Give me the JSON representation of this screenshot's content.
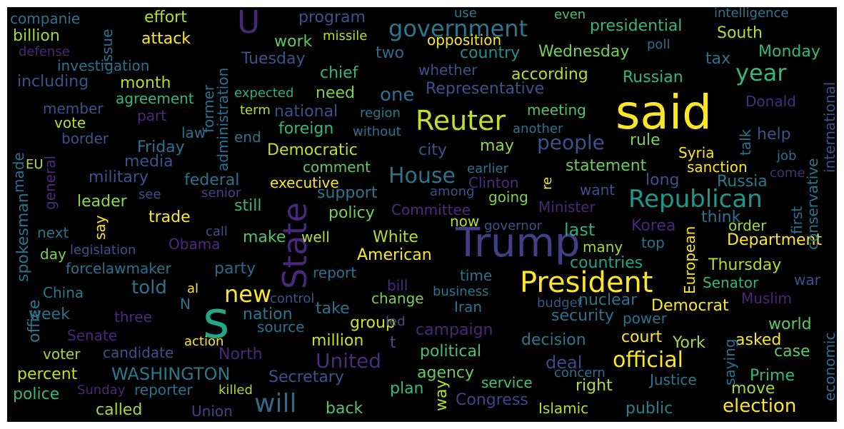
{
  "words": [
    {
      "text": "said",
      "color": "#fde725"
    },
    {
      "text": "Trump",
      "color": "#433e85"
    },
    {
      "text": "s",
      "color": "#22a884"
    },
    {
      "text": "State",
      "color": "#482878"
    },
    {
      "text": "President",
      "color": "#fde725"
    },
    {
      "text": "Reuter",
      "color": "#c2df23"
    },
    {
      "text": "Republican",
      "color": "#1f988b"
    },
    {
      "text": "government",
      "color": "#2a788e"
    },
    {
      "text": "new",
      "color": "#fde725"
    },
    {
      "text": "will",
      "color": "#31688e"
    },
    {
      "text": "year",
      "color": "#35b779"
    },
    {
      "text": "official",
      "color": "#fde725"
    },
    {
      "text": "House",
      "color": "#2c728e"
    },
    {
      "text": "people",
      "color": "#3b528b"
    },
    {
      "text": "United",
      "color": "#472d7b"
    },
    {
      "text": "election",
      "color": "#fde725"
    },
    {
      "text": "told",
      "color": "#2c728e"
    },
    {
      "text": "U",
      "color": "#482878"
    },
    {
      "text": "one",
      "color": "#2c728e"
    },
    {
      "text": "WASHINGTON",
      "color": "#2a788e"
    },
    {
      "text": "Democratic",
      "color": "#c2df23"
    },
    {
      "text": "American",
      "color": "#fde725"
    },
    {
      "text": "Democrat",
      "color": "#fde725"
    },
    {
      "text": "Department",
      "color": "#fde725"
    },
    {
      "text": "Thursday",
      "color": "#b5de2b"
    },
    {
      "text": "security",
      "color": "#2c728e"
    },
    {
      "text": "party",
      "color": "#31688e"
    },
    {
      "text": "White",
      "color": "#b5de2b"
    },
    {
      "text": "Wednesday",
      "color": "#73d056"
    },
    {
      "text": "Representative",
      "color": "#3b528b"
    },
    {
      "text": "according",
      "color": "#b5de2b"
    },
    {
      "text": "Russian",
      "color": "#35b779"
    },
    {
      "text": "country",
      "color": "#21918c"
    },
    {
      "text": "chief",
      "color": "#35b779"
    },
    {
      "text": "two",
      "color": "#31688e"
    },
    {
      "text": "month",
      "color": "#b5de2b"
    },
    {
      "text": "foreign",
      "color": "#35b779"
    },
    {
      "text": "meeting",
      "color": "#54c568"
    },
    {
      "text": "statement",
      "color": "#6ccd5a"
    },
    {
      "text": "Russia",
      "color": "#2a788e"
    },
    {
      "text": "military",
      "color": "#3b528b"
    },
    {
      "text": "leader",
      "color": "#8fd744"
    },
    {
      "text": "trade",
      "color": "#fde725"
    },
    {
      "text": "support",
      "color": "#2a788e"
    },
    {
      "text": "policy",
      "color": "#73d056"
    },
    {
      "text": "last",
      "color": "#29af7f"
    },
    {
      "text": "order",
      "color": "#9fda3a"
    },
    {
      "text": "countries",
      "color": "#21a685"
    },
    {
      "text": "political",
      "color": "#4ac16d"
    },
    {
      "text": "deal",
      "color": "#3e4a89"
    },
    {
      "text": "right",
      "color": "#b5de2b"
    },
    {
      "text": "court",
      "color": "#fde725"
    },
    {
      "text": "group",
      "color": "#d0e11c"
    },
    {
      "text": "million",
      "color": "#c8e020"
    },
    {
      "text": "Secretary",
      "color": "#3b528b"
    },
    {
      "text": "percent",
      "color": "#c2df23"
    },
    {
      "text": "police",
      "color": "#35b779"
    },
    {
      "text": "called",
      "color": "#a2da37"
    },
    {
      "text": "back",
      "color": "#54c568"
    },
    {
      "text": "public",
      "color": "#26828e"
    },
    {
      "text": "Islamic",
      "color": "#b5de2b"
    },
    {
      "text": "Congress",
      "color": "#414487"
    },
    {
      "text": "plan",
      "color": "#38b977"
    },
    {
      "text": "agency",
      "color": "#6ccd5a"
    },
    {
      "text": "campaign",
      "color": "#482878"
    },
    {
      "text": "decision",
      "color": "#2a788e"
    },
    {
      "text": "world",
      "color": "#5ec962"
    },
    {
      "text": "case",
      "color": "#5ec962"
    },
    {
      "text": "Prime",
      "color": "#35b779"
    },
    {
      "text": "move",
      "color": "#a0da39"
    },
    {
      "text": "economic",
      "color": "#2c728e"
    },
    {
      "text": "Justice",
      "color": "#2a788e"
    },
    {
      "text": "concern",
      "color": "#2c728e"
    },
    {
      "text": "service",
      "color": "#4ac16d"
    },
    {
      "text": "Union",
      "color": "#414487"
    },
    {
      "text": "killed",
      "color": "#a2da37"
    },
    {
      "text": "reporter",
      "color": "#2c728e"
    },
    {
      "text": "Sunday",
      "color": "#482878"
    },
    {
      "text": "candidate",
      "color": "#3b528b"
    },
    {
      "text": "voter",
      "color": "#9fda3a"
    },
    {
      "text": "Senate",
      "color": "#482878"
    },
    {
      "text": "three",
      "color": "#472d7b"
    },
    {
      "text": "week",
      "color": "#2c728e"
    },
    {
      "text": "China",
      "color": "#2a788e"
    },
    {
      "text": "office",
      "color": "#2a788e"
    },
    {
      "text": "day",
      "color": "#7ad151"
    },
    {
      "text": "next",
      "color": "#2c728e"
    },
    {
      "text": "spokesman",
      "color": "#2c728e"
    },
    {
      "text": "forcelawmaker",
      "color": "#2c728e"
    },
    {
      "text": "legislation",
      "color": "#3b528b"
    },
    {
      "text": "Obama",
      "color": "#472d7b"
    },
    {
      "text": "make",
      "color": "#54c568"
    },
    {
      "text": "well",
      "color": "#b5de2b"
    },
    {
      "text": "call",
      "color": "#3b528b"
    },
    {
      "text": "still",
      "color": "#35b779"
    },
    {
      "text": "senior",
      "color": "#414487"
    },
    {
      "text": "see",
      "color": "#3b528b"
    },
    {
      "text": "executive",
      "color": "#fde725"
    },
    {
      "text": "federal",
      "color": "#2c728e"
    },
    {
      "text": "media",
      "color": "#3b528b"
    },
    {
      "text": "Friday",
      "color": "#2c728e"
    },
    {
      "text": "border",
      "color": "#3b528b"
    },
    {
      "text": "vote",
      "color": "#b5de2b"
    },
    {
      "text": "member",
      "color": "#3b528b"
    },
    {
      "text": "part",
      "color": "#472d7b"
    },
    {
      "text": "agreement",
      "color": "#35b779"
    },
    {
      "text": "including",
      "color": "#3b528b"
    },
    {
      "text": "investigation",
      "color": "#2c728e"
    },
    {
      "text": "defense",
      "color": "#482878"
    },
    {
      "text": "billion",
      "color": "#9fda3a"
    },
    {
      "text": "companie",
      "color": "#2c728e"
    },
    {
      "text": "effort",
      "color": "#b5de2b"
    },
    {
      "text": "attack",
      "color": "#fde725"
    },
    {
      "text": "issue",
      "color": "#2c728e"
    },
    {
      "text": "program",
      "color": "#3b528b"
    },
    {
      "text": "work",
      "color": "#5ec962"
    },
    {
      "text": "missile",
      "color": "#b5de2b"
    },
    {
      "text": "use",
      "color": "#2a788e"
    },
    {
      "text": "opposition",
      "color": "#fde725"
    },
    {
      "text": "even",
      "color": "#4ac16d"
    },
    {
      "text": "presidential",
      "color": "#35b779"
    },
    {
      "text": "intelligence",
      "color": "#2a788e"
    },
    {
      "text": "South",
      "color": "#b5de2b"
    },
    {
      "text": "poll",
      "color": "#2c728e"
    },
    {
      "text": "tax",
      "color": "#2c728e"
    },
    {
      "text": "Monday",
      "color": "#35b779"
    },
    {
      "text": "international",
      "color": "#3b528b"
    },
    {
      "text": "Tuesday",
      "color": "#3b528b"
    },
    {
      "text": "whether",
      "color": "#3b528b"
    },
    {
      "text": "need",
      "color": "#7ad151"
    },
    {
      "text": "expected",
      "color": "#29af7f"
    },
    {
      "text": "term",
      "color": "#b5de2b"
    },
    {
      "text": "national",
      "color": "#3b528b"
    },
    {
      "text": "region",
      "color": "#2a788e"
    },
    {
      "text": "without",
      "color": "#2c728e"
    },
    {
      "text": "another",
      "color": "#2c728e"
    },
    {
      "text": "Donald",
      "color": "#472d7b"
    },
    {
      "text": "end",
      "color": "#2c728e"
    },
    {
      "text": "law",
      "color": "#2c728e"
    },
    {
      "text": "city",
      "color": "#3b528b"
    },
    {
      "text": "may",
      "color": "#8fd744"
    },
    {
      "text": "rule",
      "color": "#7ad151"
    },
    {
      "text": "help",
      "color": "#3b528b"
    },
    {
      "text": "Syria",
      "color": "#fde725"
    },
    {
      "text": "job",
      "color": "#2c728e"
    },
    {
      "text": "comment",
      "color": "#5ec962"
    },
    {
      "text": "earlier",
      "color": "#2c728e"
    },
    {
      "text": "long",
      "color": "#3b528b"
    },
    {
      "text": "sanction",
      "color": "#fde725"
    },
    {
      "text": "come",
      "color": "#472d7b"
    },
    {
      "text": "Clinton",
      "color": "#472d7b"
    },
    {
      "text": "among",
      "color": "#3b528b"
    },
    {
      "text": "going",
      "color": "#7ad151"
    },
    {
      "text": "want",
      "color": "#3b528b"
    },
    {
      "text": "Minister",
      "color": "#482878"
    },
    {
      "text": "think",
      "color": "#2c728e"
    },
    {
      "text": "Committee",
      "color": "#472d7b"
    },
    {
      "text": "now",
      "color": "#b5de2b"
    },
    {
      "text": "governor",
      "color": "#3b528b"
    },
    {
      "text": "Korea",
      "color": "#482878"
    },
    {
      "text": "many",
      "color": "#9fda3a"
    },
    {
      "text": "top",
      "color": "#2c728e"
    },
    {
      "text": "report",
      "color": "#2c728e"
    },
    {
      "text": "time",
      "color": "#2c728e"
    },
    {
      "text": "business",
      "color": "#2a788e"
    },
    {
      "text": "change",
      "color": "#7ad151"
    },
    {
      "text": "bill",
      "color": "#472d7b"
    },
    {
      "text": "control",
      "color": "#3b528b"
    },
    {
      "text": "budget",
      "color": "#3b528b"
    },
    {
      "text": "nuclear",
      "color": "#2c728e"
    },
    {
      "text": "power",
      "color": "#2c728e"
    },
    {
      "text": "Muslim",
      "color": "#482878"
    },
    {
      "text": "Senator",
      "color": "#35b779"
    },
    {
      "text": "war",
      "color": "#3b528b"
    },
    {
      "text": "Iran",
      "color": "#2c728e"
    },
    {
      "text": "take",
      "color": "#2c728e"
    },
    {
      "text": "nation",
      "color": "#2a788e"
    },
    {
      "text": "source",
      "color": "#2c728e"
    },
    {
      "text": "led",
      "color": "#3b528b"
    },
    {
      "text": "t",
      "color": "#3b528b"
    },
    {
      "text": "action",
      "color": "#fde725"
    },
    {
      "text": "North",
      "color": "#482878"
    },
    {
      "text": "asked",
      "color": "#fde725"
    },
    {
      "text": "York",
      "color": "#a2da37"
    },
    {
      "text": "N",
      "color": "#2c728e"
    },
    {
      "text": "al",
      "color": "#fde725"
    },
    {
      "text": "say",
      "color": "#fde725"
    },
    {
      "text": "re",
      "color": "#fde725"
    },
    {
      "text": "way",
      "color": "#b5de2b"
    },
    {
      "text": "first",
      "color": "#2c728e"
    },
    {
      "text": "talk",
      "color": "#2c728e"
    },
    {
      "text": "European",
      "color": "#fde725"
    },
    {
      "text": "conservative",
      "color": "#2a788e"
    },
    {
      "text": "saying",
      "color": "#2c728e"
    },
    {
      "text": "administration",
      "color": "#2c728e"
    },
    {
      "text": "former",
      "color": "#2c728e"
    },
    {
      "text": "general",
      "color": "#472d7b"
    },
    {
      "text": "made",
      "color": "#2c728e"
    },
    {
      "text": "EU",
      "color": "#b5de2b"
    }
  ]
}
